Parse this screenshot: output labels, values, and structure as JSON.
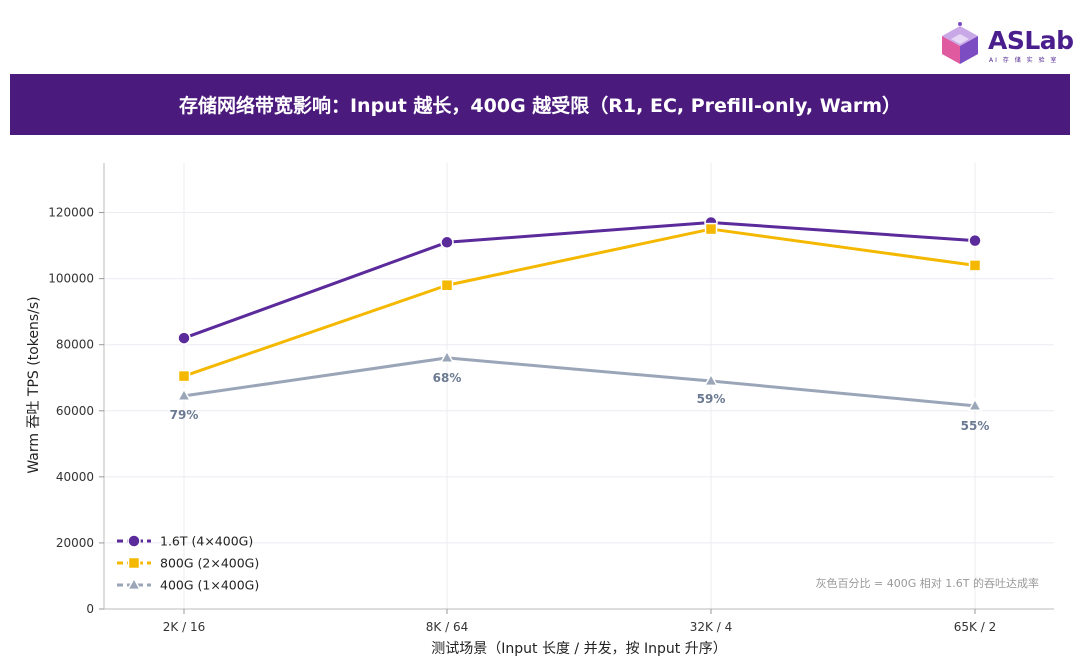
{
  "header": {
    "logo_text": "ASLab",
    "logo_subtext": "AI 存 储 实 验 室",
    "title": "存储网络带宽影响：Input 越长，400G 越受限（R1, EC, Prefill-only, Warm）"
  },
  "chart_data": {
    "type": "line",
    "title": "存储网络带宽影响：Input 越长，400G 越受限（R1, EC, Prefill-only, Warm）",
    "xlabel": "测试场景（Input 长度 / 并发，按 Input 升序）",
    "ylabel": "Warm 吞吐 TPS (tokens/s)",
    "categories": [
      "2K / 16",
      "8K / 64",
      "32K / 4",
      "65K / 2"
    ],
    "ylim": [
      0,
      135000
    ],
    "yticks": [
      0,
      20000,
      40000,
      60000,
      80000,
      100000,
      120000
    ],
    "grid": true,
    "legend_position": "bottom-left",
    "series": [
      {
        "name": "1.6T (4×400G)",
        "marker": "circle",
        "color": "#5b2a9b",
        "values": [
          82000,
          111000,
          117000,
          111500
        ]
      },
      {
        "name": "800G (2×400G)",
        "marker": "square",
        "color": "#f5b800",
        "values": [
          70500,
          98000,
          115000,
          104000
        ]
      },
      {
        "name": "400G (1×400G)",
        "marker": "triangle",
        "color": "#9aa6b8",
        "values": [
          64500,
          76000,
          69000,
          61500
        ]
      }
    ],
    "annotations": [
      "79%",
      "68%",
      "59%",
      "55%"
    ],
    "note": "灰色百分比 = 400G 相对 1.6T 的吞吐达成率"
  }
}
